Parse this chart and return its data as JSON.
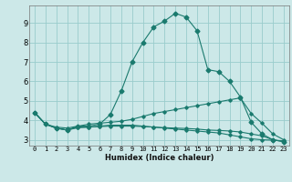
{
  "xlabel": "Humidex (Indice chaleur)",
  "ylabel": "",
  "bg_color": "#cce8e8",
  "grid_color": "#99cccc",
  "line_color": "#1a7a6e",
  "xlim": [
    -0.5,
    23.5
  ],
  "ylim": [
    2.7,
    9.9
  ],
  "xticks": [
    0,
    1,
    2,
    3,
    4,
    5,
    6,
    7,
    8,
    9,
    10,
    11,
    12,
    13,
    14,
    15,
    16,
    17,
    18,
    19,
    20,
    21,
    22,
    23
  ],
  "yticks": [
    3,
    4,
    5,
    6,
    7,
    8,
    9
  ],
  "curves": [
    {
      "x": [
        0,
        1,
        2,
        3,
        4,
        5,
        6,
        7,
        8,
        9,
        10,
        11,
        12,
        13,
        14,
        15,
        16,
        17,
        18,
        19,
        20,
        21,
        22,
        23
      ],
      "y": [
        4.4,
        3.8,
        3.6,
        3.5,
        3.7,
        3.7,
        3.8,
        4.3,
        5.5,
        7.0,
        8.0,
        8.8,
        9.1,
        9.5,
        9.3,
        8.6,
        6.6,
        6.5,
        6.0,
        5.2,
        3.9,
        3.3,
        3.0,
        2.9
      ],
      "marker": "D",
      "markersize": 2.5
    },
    {
      "x": [
        0,
        1,
        2,
        3,
        4,
        5,
        6,
        7,
        8,
        9,
        10,
        11,
        12,
        13,
        14,
        15,
        16,
        17,
        18,
        19,
        20,
        21,
        22,
        23
      ],
      "y": [
        4.4,
        3.8,
        3.65,
        3.6,
        3.7,
        3.8,
        3.85,
        3.9,
        3.95,
        4.05,
        4.2,
        4.35,
        4.45,
        4.55,
        4.65,
        4.75,
        4.85,
        4.95,
        5.05,
        5.15,
        4.35,
        3.85,
        3.3,
        3.0
      ],
      "marker": "D",
      "markersize": 1.8
    },
    {
      "x": [
        0,
        1,
        2,
        3,
        4,
        5,
        6,
        7,
        8,
        9,
        10,
        11,
        12,
        13,
        14,
        15,
        16,
        17,
        18,
        19,
        20,
        21,
        22,
        23
      ],
      "y": [
        4.4,
        3.8,
        3.6,
        3.5,
        3.65,
        3.65,
        3.7,
        3.75,
        3.75,
        3.75,
        3.7,
        3.65,
        3.6,
        3.55,
        3.5,
        3.45,
        3.4,
        3.35,
        3.25,
        3.15,
        3.05,
        3.0,
        2.98,
        2.95
      ],
      "marker": "D",
      "markersize": 1.8
    },
    {
      "x": [
        0,
        1,
        2,
        3,
        4,
        5,
        6,
        7,
        8,
        9,
        10,
        11,
        12,
        13,
        14,
        15,
        16,
        17,
        18,
        19,
        20,
        21,
        22,
        23
      ],
      "y": [
        4.4,
        3.8,
        3.6,
        3.5,
        3.62,
        3.65,
        3.68,
        3.7,
        3.7,
        3.7,
        3.68,
        3.65,
        3.62,
        3.6,
        3.58,
        3.55,
        3.5,
        3.48,
        3.45,
        3.4,
        3.3,
        3.2,
        3.0,
        2.9
      ],
      "marker": "D",
      "markersize": 1.8
    }
  ]
}
